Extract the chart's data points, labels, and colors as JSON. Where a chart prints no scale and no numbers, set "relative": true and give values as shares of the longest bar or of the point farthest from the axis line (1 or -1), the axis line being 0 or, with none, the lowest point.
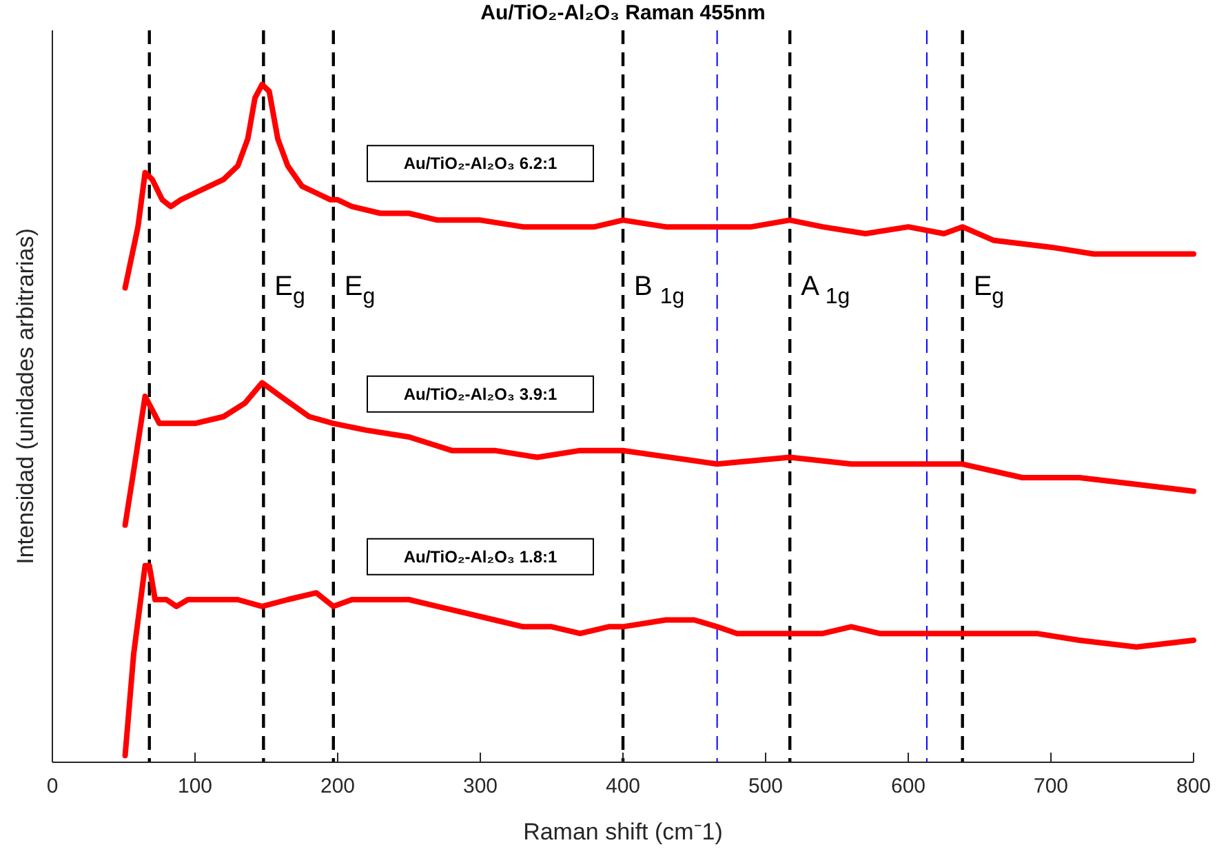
{
  "chart_data": {
    "type": "line",
    "title": "Au/TiO₂-Al₂O₃ Raman 455nm",
    "xlabel": "Raman shift (cm⁻1)",
    "ylabel": "Intensidad (unidades arbitrarias)",
    "relative": true,
    "xlim": [
      0,
      800
    ],
    "xticks": [
      0,
      100,
      200,
      300,
      400,
      500,
      600,
      700,
      800
    ],
    "grid": false,
    "marker": "none",
    "line_style": "solid",
    "tick_labels": "x",
    "series": [
      {
        "name": "Au/TiO₂-Al₂O₃ 6.2:1",
        "color": "#ff0000",
        "x": [
          51,
          60,
          65,
          70,
          77,
          83,
          90,
          100,
          110,
          120,
          130,
          137,
          142,
          147,
          152,
          158,
          165,
          175,
          185,
          195,
          200,
          210,
          230,
          250,
          270,
          300,
          330,
          350,
          380,
          400,
          430,
          460,
          475,
          490,
          517,
          540,
          570,
          600,
          625,
          638,
          660,
          700,
          730,
          760,
          800
        ],
        "values": [
          0.7,
          0.79,
          0.87,
          0.86,
          0.83,
          0.82,
          0.83,
          0.84,
          0.85,
          0.86,
          0.88,
          0.92,
          0.98,
          1,
          0.99,
          0.92,
          0.88,
          0.85,
          0.84,
          0.83,
          0.83,
          0.82,
          0.81,
          0.81,
          0.8,
          0.8,
          0.79,
          0.79,
          0.79,
          0.8,
          0.79,
          0.79,
          0.79,
          0.79,
          0.8,
          0.79,
          0.78,
          0.79,
          0.78,
          0.79,
          0.77,
          0.76,
          0.75,
          0.75,
          0.75
        ]
      },
      {
        "name": "Au/TiO₂-Al₂O₃ 3.9:1",
        "color": "#ff0000",
        "x": [
          51,
          57,
          65,
          75,
          100,
          120,
          135,
          147,
          160,
          180,
          197,
          220,
          250,
          280,
          310,
          340,
          370,
          400,
          466,
          517,
          560,
          613,
          638,
          680,
          720,
          760,
          800
        ],
        "values": [
          0.35,
          0.43,
          0.54,
          0.5,
          0.5,
          0.51,
          0.53,
          0.56,
          0.54,
          0.51,
          0.5,
          0.49,
          0.48,
          0.46,
          0.46,
          0.45,
          0.46,
          0.46,
          0.44,
          0.45,
          0.44,
          0.44,
          0.44,
          0.42,
          0.42,
          0.41,
          0.4
        ]
      },
      {
        "name": "Au/TiO₂-Al₂O₃ 1.8:1",
        "color": "#ff0000",
        "x": [
          51,
          57,
          65,
          68,
          72,
          80,
          87,
          95,
          105,
          115,
          130,
          147,
          165,
          185,
          197,
          210,
          230,
          250,
          270,
          290,
          310,
          330,
          350,
          370,
          390,
          400,
          430,
          450,
          466,
          480,
          500,
          517,
          540,
          560,
          580,
          613,
          638,
          660,
          690,
          720,
          760,
          800
        ],
        "values": [
          0.01,
          0.16,
          0.29,
          0.29,
          0.24,
          0.24,
          0.23,
          0.24,
          0.24,
          0.24,
          0.24,
          0.23,
          0.24,
          0.25,
          0.23,
          0.24,
          0.24,
          0.24,
          0.23,
          0.22,
          0.21,
          0.2,
          0.2,
          0.19,
          0.2,
          0.2,
          0.21,
          0.21,
          0.2,
          0.19,
          0.19,
          0.19,
          0.19,
          0.2,
          0.19,
          0.19,
          0.19,
          0.19,
          0.19,
          0.18,
          0.17,
          0.18
        ]
      }
    ],
    "ref_lines": [
      {
        "axis": "x",
        "value": 68,
        "color": "#000000",
        "line_style": "dashed"
      },
      {
        "axis": "x",
        "value": 148,
        "label": "E$_{g}$",
        "color": "#000000",
        "line_style": "dashed"
      },
      {
        "axis": "x",
        "value": 197,
        "label": "E$_{g}$",
        "color": "#000000",
        "line_style": "dashed"
      },
      {
        "axis": "x",
        "value": 400,
        "label": "B $_{1g}$",
        "color": "#000000",
        "line_style": "dashed"
      },
      {
        "axis": "x",
        "value": 466,
        "color": "#0000ff",
        "line_style": "dashed"
      },
      {
        "axis": "x",
        "value": 517,
        "label": "A $_{1g}$",
        "color": "#000000",
        "line_style": "dashed"
      },
      {
        "axis": "x",
        "value": 613,
        "color": "#0000ff",
        "line_style": "dashed"
      },
      {
        "axis": "x",
        "value": 638,
        "label": "E$_{g}$",
        "color": "#000000",
        "line_style": "dashed"
      }
    ]
  }
}
